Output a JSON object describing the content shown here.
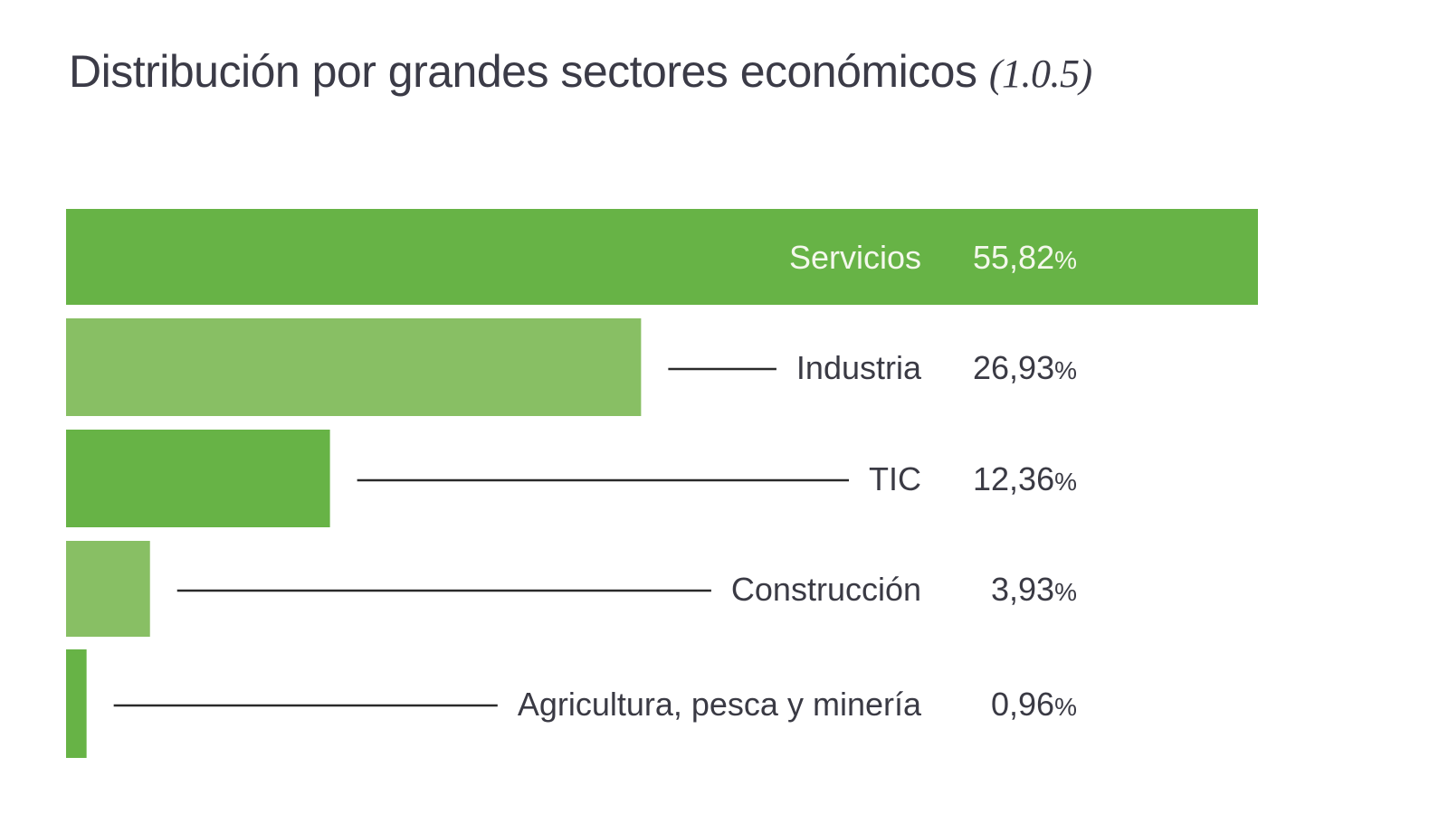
{
  "chart_data": {
    "type": "bar",
    "orientation": "horizontal",
    "title": "Distribución por grandes sectores económicos",
    "title_ref": "(1.0.5)",
    "categories": [
      "Servicios",
      "Industria",
      "TIC",
      "Construcción",
      "Agricultura, pesca y minería"
    ],
    "values": [
      55.82,
      26.93,
      12.36,
      3.93,
      0.96
    ],
    "value_labels": [
      "55,82",
      "26,93",
      "12,36",
      "3,93",
      "0,96"
    ],
    "unit": "%",
    "xlabel": "",
    "ylabel": "",
    "grid": false,
    "colors": [
      "#67b346",
      "#88bf64",
      "#67b346",
      "#88bf64",
      "#67b346"
    ]
  }
}
